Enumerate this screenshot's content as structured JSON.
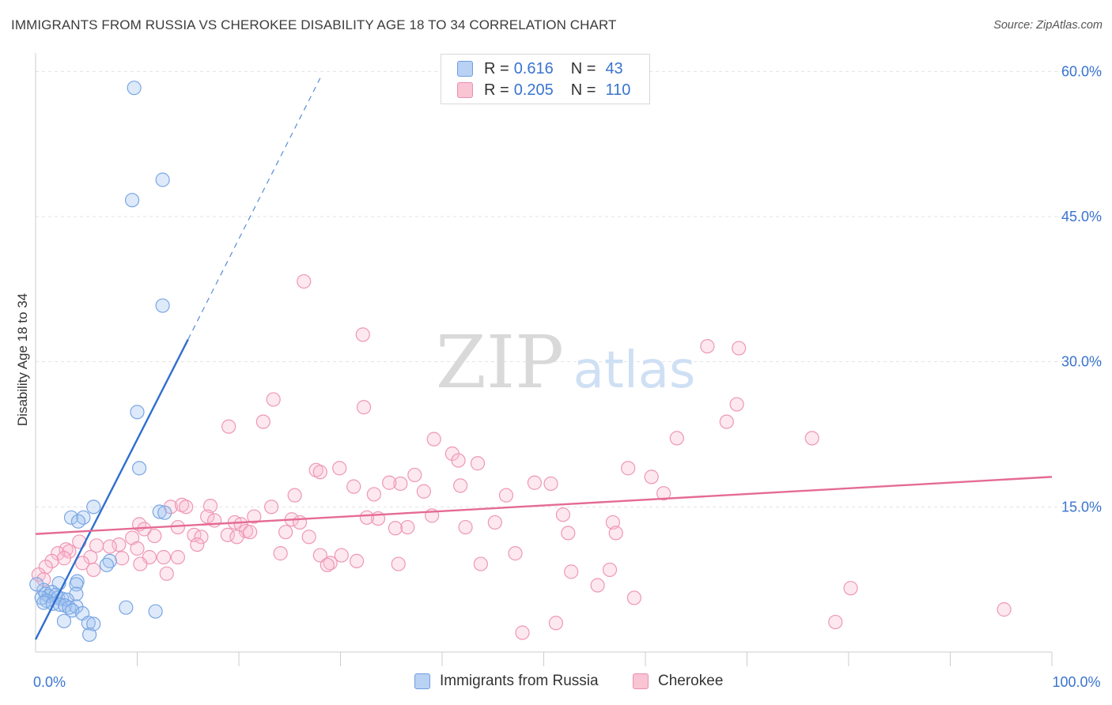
{
  "header": {
    "title": "IMMIGRANTS FROM RUSSIA VS CHEROKEE DISABILITY AGE 18 TO 34 CORRELATION CHART",
    "source": "Source: ZipAtlas.com"
  },
  "watermark": {
    "zip": "ZIP",
    "atlas": "atlas"
  },
  "legend": {
    "r_label": "R =",
    "n_label": "N =",
    "rows": [
      {
        "r": "0.616",
        "n": "43",
        "fill": "#b9d1f3",
        "stroke": "#6e9ee0"
      },
      {
        "r": "0.205",
        "n": "110",
        "fill": "#f9c4d4",
        "stroke": "#ec8fae"
      }
    ]
  },
  "bottom_legend": [
    {
      "label": "Immigrants from Russia",
      "fill": "#b9d1f3",
      "stroke": "#6e9ee0"
    },
    {
      "label": "Cherokee",
      "fill": "#f9c4d4",
      "stroke": "#ec8fae"
    }
  ],
  "colors": {
    "blue_line": "#2f6fce",
    "pink_line": "#e56b95",
    "blue_point_fill": "rgba(160,195,240,0.35)",
    "blue_point_stroke": "#7aa6e3",
    "pink_point_fill": "rgba(248,190,210,0.35)",
    "pink_point_stroke": "#ee97b4",
    "tick_label": "#3a74cf",
    "grid": "#e3e3e3"
  },
  "chart_data": {
    "type": "scatter",
    "title": "IMMIGRANTS FROM RUSSIA VS CHEROKEE DISABILITY AGE 18 TO 34 CORRELATION CHART",
    "xlabel": "",
    "ylabel": "Disability Age 18 to 34",
    "xlim": [
      0,
      100
    ],
    "ylim": [
      0,
      61.5
    ],
    "x_tick_labels": [
      {
        "value": 0,
        "label": "0.0%"
      },
      {
        "value": 100,
        "label": "100.0%"
      }
    ],
    "y_tick_labels": [
      {
        "value": 15,
        "label": "15.0%"
      },
      {
        "value": 30,
        "label": "30.0%"
      },
      {
        "value": 45,
        "label": "45.0%"
      },
      {
        "value": 60,
        "label": "60.0%"
      }
    ],
    "x_minor_ticks": [
      10,
      20,
      30,
      40,
      50,
      60,
      70,
      80,
      90,
      100
    ],
    "grid": true,
    "legend_position": "top-center",
    "series": [
      {
        "name": "Immigrants from Russia",
        "r": 0.616,
        "n": 43,
        "trend": {
          "x0": 0,
          "y0": 1.3,
          "x1": 15,
          "y1": 32.3,
          "dash_to_x": 28.0,
          "dash_to_y": 59.3
        },
        "points": [
          [
            9.7,
            58.3
          ],
          [
            12.5,
            48.8
          ],
          [
            9.5,
            46.7
          ],
          [
            12.5,
            35.8
          ],
          [
            10.0,
            24.8
          ],
          [
            10.2,
            19.0
          ],
          [
            5.7,
            15.0
          ],
          [
            12.2,
            14.5
          ],
          [
            12.7,
            14.4
          ],
          [
            3.5,
            13.9
          ],
          [
            4.7,
            13.9
          ],
          [
            4.2,
            13.5
          ],
          [
            7.3,
            9.4
          ],
          [
            7.0,
            9.0
          ],
          [
            4.1,
            7.3
          ],
          [
            2.3,
            7.1
          ],
          [
            4.0,
            7.0
          ],
          [
            4.0,
            6.0
          ],
          [
            0.8,
            6.4
          ],
          [
            1.0,
            6.0
          ],
          [
            1.3,
            5.8
          ],
          [
            1.6,
            6.2
          ],
          [
            2.0,
            5.9
          ],
          [
            2.2,
            5.6
          ],
          [
            0.6,
            5.6
          ],
          [
            1.1,
            5.3
          ],
          [
            0.8,
            5.1
          ],
          [
            2.6,
            5.5
          ],
          [
            3.1,
            5.4
          ],
          [
            1.7,
            5.0
          ],
          [
            2.4,
            4.9
          ],
          [
            2.9,
            4.8
          ],
          [
            3.3,
            4.6
          ],
          [
            4.0,
            4.7
          ],
          [
            3.6,
            4.3
          ],
          [
            4.6,
            4.0
          ],
          [
            2.8,
            3.2
          ],
          [
            8.9,
            4.6
          ],
          [
            11.8,
            4.2
          ],
          [
            5.2,
            3.0
          ],
          [
            5.7,
            2.9
          ],
          [
            5.3,
            1.8
          ],
          [
            0.1,
            7.0
          ]
        ]
      },
      {
        "name": "Cherokee",
        "r": 0.205,
        "n": 110,
        "trend": {
          "x0": 0,
          "y0": 12.2,
          "x1": 100,
          "y1": 18.1
        },
        "points": [
          [
            26.4,
            38.3
          ],
          [
            32.2,
            32.8
          ],
          [
            66.1,
            31.6
          ],
          [
            69.2,
            31.4
          ],
          [
            23.4,
            26.1
          ],
          [
            32.3,
            25.3
          ],
          [
            69.0,
            25.6
          ],
          [
            22.4,
            23.8
          ],
          [
            68.0,
            23.8
          ],
          [
            19.0,
            23.3
          ],
          [
            39.2,
            22.0
          ],
          [
            63.1,
            22.1
          ],
          [
            76.4,
            22.1
          ],
          [
            41.0,
            20.5
          ],
          [
            41.6,
            19.8
          ],
          [
            43.5,
            19.5
          ],
          [
            29.9,
            19.0
          ],
          [
            27.6,
            18.8
          ],
          [
            28.0,
            18.6
          ],
          [
            58.3,
            19.0
          ],
          [
            37.3,
            18.3
          ],
          [
            60.6,
            18.1
          ],
          [
            35.9,
            17.4
          ],
          [
            34.8,
            17.5
          ],
          [
            41.8,
            17.2
          ],
          [
            31.3,
            17.1
          ],
          [
            49.1,
            17.5
          ],
          [
            50.7,
            17.4
          ],
          [
            33.3,
            16.3
          ],
          [
            38.2,
            16.6
          ],
          [
            46.3,
            16.2
          ],
          [
            61.8,
            16.4
          ],
          [
            25.5,
            16.2
          ],
          [
            13.3,
            15.0
          ],
          [
            14.4,
            15.2
          ],
          [
            14.8,
            15.0
          ],
          [
            17.2,
            15.1
          ],
          [
            23.2,
            15.0
          ],
          [
            51.9,
            14.2
          ],
          [
            39.0,
            14.1
          ],
          [
            16.9,
            14.0
          ],
          [
            21.5,
            14.0
          ],
          [
            17.6,
            13.6
          ],
          [
            25.2,
            13.7
          ],
          [
            26.0,
            13.4
          ],
          [
            19.6,
            13.4
          ],
          [
            20.2,
            13.2
          ],
          [
            33.7,
            13.8
          ],
          [
            32.6,
            13.9
          ],
          [
            10.2,
            13.2
          ],
          [
            56.8,
            13.4
          ],
          [
            45.2,
            13.4
          ],
          [
            57.1,
            12.3
          ],
          [
            36.6,
            12.9
          ],
          [
            42.3,
            12.9
          ],
          [
            14.0,
            12.9
          ],
          [
            20.7,
            12.5
          ],
          [
            10.7,
            12.7
          ],
          [
            15.6,
            12.1
          ],
          [
            18.9,
            12.1
          ],
          [
            21.1,
            12.4
          ],
          [
            52.4,
            12.3
          ],
          [
            24.6,
            12.4
          ],
          [
            11.7,
            12.0
          ],
          [
            16.3,
            11.9
          ],
          [
            19.8,
            11.9
          ],
          [
            26.9,
            11.9
          ],
          [
            35.4,
            12.8
          ],
          [
            9.5,
            11.8
          ],
          [
            15.9,
            11.1
          ],
          [
            6.0,
            11.0
          ],
          [
            4.3,
            11.4
          ],
          [
            8.2,
            11.1
          ],
          [
            7.3,
            10.9
          ],
          [
            10.0,
            10.7
          ],
          [
            3.0,
            10.6
          ],
          [
            3.3,
            10.4
          ],
          [
            2.2,
            10.2
          ],
          [
            47.2,
            10.2
          ],
          [
            24.1,
            10.2
          ],
          [
            28.0,
            10.0
          ],
          [
            30.1,
            10.0
          ],
          [
            2.8,
            9.7
          ],
          [
            5.4,
            9.8
          ],
          [
            8.5,
            9.7
          ],
          [
            11.2,
            9.8
          ],
          [
            12.6,
            9.8
          ],
          [
            14.0,
            9.8
          ],
          [
            1.6,
            9.4
          ],
          [
            4.6,
            9.2
          ],
          [
            10.3,
            9.1
          ],
          [
            31.6,
            9.4
          ],
          [
            35.7,
            9.1
          ],
          [
            29.0,
            9.2
          ],
          [
            28.7,
            9.0
          ],
          [
            43.8,
            9.1
          ],
          [
            1.0,
            8.8
          ],
          [
            12.9,
            8.1
          ],
          [
            5.7,
            8.5
          ],
          [
            56.5,
            8.5
          ],
          [
            52.7,
            8.3
          ],
          [
            0.3,
            8.0
          ],
          [
            0.8,
            7.5
          ],
          [
            55.3,
            6.9
          ],
          [
            80.2,
            6.6
          ],
          [
            58.9,
            5.6
          ],
          [
            95.3,
            4.4
          ],
          [
            78.7,
            3.1
          ],
          [
            51.2,
            3.0
          ],
          [
            47.9,
            2.0
          ]
        ]
      }
    ]
  }
}
